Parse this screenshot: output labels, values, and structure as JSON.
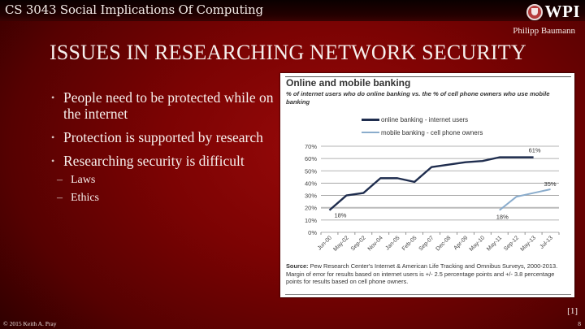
{
  "header": {
    "course_title": "CS 3043 Social Implications Of Computing",
    "logo_text": "WPI",
    "author": "Philipp Baumann"
  },
  "slide": {
    "title": "ISSUES IN RESEARCHING NETWORK SECURITY",
    "bullets": [
      {
        "text": "People need to be protected while on the internet"
      },
      {
        "text": "Protection is supported by research"
      },
      {
        "text": "Researching security is difficult",
        "sub": [
          "Laws",
          "Ethics"
        ]
      }
    ],
    "reference": "[1]"
  },
  "figure": {
    "title": "Online and mobile banking",
    "subtitle": "% of internet users who do online banking vs. the % of cell phone owners who use mobile banking",
    "source_label": "Source:",
    "source_text": "Pew Research Center's Internet & American Life Tracking and Omnibus Surveys, 2000-2013.  Margin of error for results based on internet users is +/- 2.5 percentage points and +/- 3.8 percentage points for results based on cell phone owners."
  },
  "chart_data": {
    "type": "line",
    "title": "Online and mobile banking",
    "subtitle": "% of internet users who do online banking vs. the % of cell phone owners who use mobile banking",
    "xlabel": "",
    "ylabel": "",
    "ylim": [
      0,
      70
    ],
    "yticks": [
      "0%",
      "10%",
      "20%",
      "30%",
      "40%",
      "50%",
      "60%",
      "70%"
    ],
    "grid": true,
    "legend_position": "top",
    "categories": [
      "Jun-00",
      "May-02",
      "Sep-02",
      "Nov-04",
      "Jan-05",
      "Feb-05",
      "Sep-07",
      "Dec-08",
      "Apr-09",
      "May-10",
      "May-11",
      "Sep-12",
      "May-13",
      "Jul-13"
    ],
    "series": [
      {
        "name": "online banking - internet users",
        "color": "#1f2d4e",
        "values": [
          18,
          30,
          32,
          44,
          44,
          41,
          53,
          55,
          57,
          58,
          61,
          61,
          61,
          null
        ]
      },
      {
        "name": "mobile banking - cell phone owners",
        "color": "#8aaccc",
        "values": [
          null,
          null,
          null,
          null,
          null,
          null,
          null,
          null,
          null,
          null,
          18,
          29,
          32,
          35
        ]
      }
    ],
    "annotations": [
      "18%",
      "61%",
      "18%",
      "35%"
    ]
  },
  "footer": {
    "copyright": "© 2015 Keith A. Pray",
    "page_number": "8"
  }
}
